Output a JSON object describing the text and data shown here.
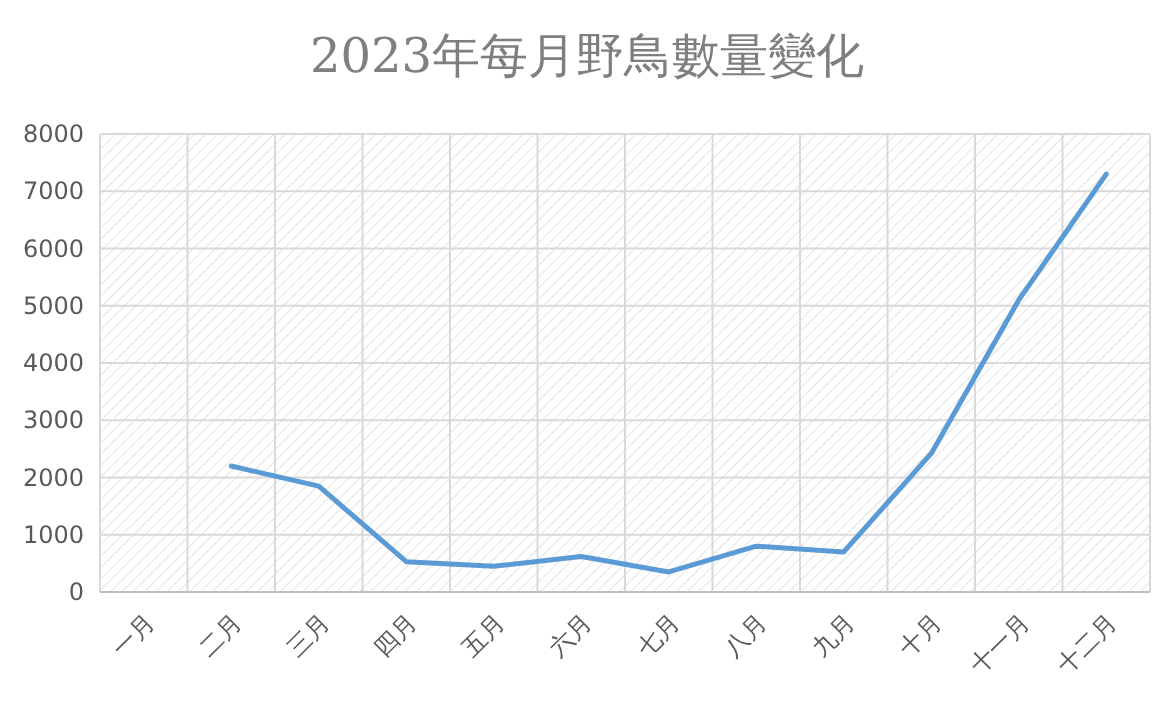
{
  "chart_data": {
    "type": "line",
    "title": "2023年每月野鳥數量變化",
    "categories": [
      "一月",
      "二月",
      "三月",
      "四月",
      "五月",
      "六月",
      "七月",
      "八月",
      "九月",
      "十月",
      "十一月",
      "十二月"
    ],
    "series": [
      {
        "color": "#5b9bd5",
        "values": [
          null,
          2200,
          1850,
          530,
          450,
          620,
          350,
          800,
          700,
          2420,
          5100,
          7300
        ]
      }
    ],
    "ylim": [
      0,
      8000
    ],
    "yticks": [
      0,
      1000,
      2000,
      3000,
      4000,
      5000,
      6000,
      7000,
      8000
    ],
    "grid": true
  }
}
